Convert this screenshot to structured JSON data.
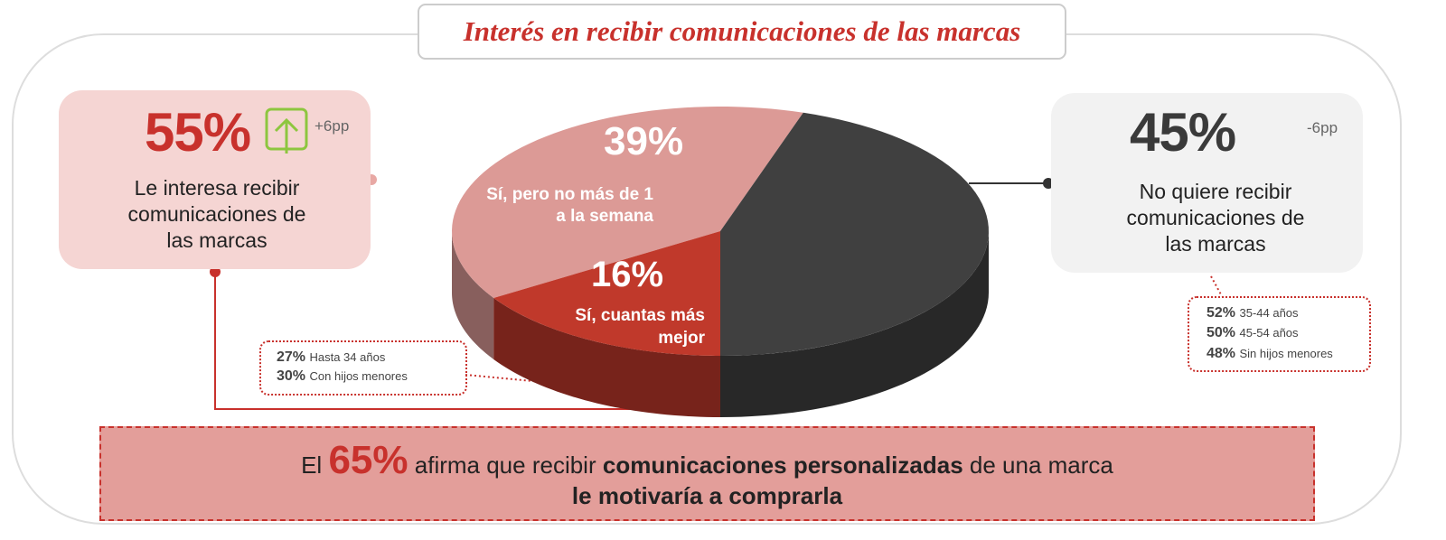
{
  "chart_data": {
    "type": "pie",
    "title": "Interés en recibir comunicaciones de las marcas",
    "categories": [
      "Sí, pero no más de 1 a la semana",
      "Sí, cuantas más mejor",
      "No quiere recibir comunicaciones de las marcas"
    ],
    "values": [
      39,
      16,
      45
    ],
    "value_labels": [
      "39%",
      "16%",
      "45%"
    ],
    "colors": [
      "#dc9a96",
      "#c0392b",
      "#404040"
    ]
  },
  "left_box": {
    "value_label": "55%",
    "change": "+6pp",
    "text": "Le interesa recibir comunicaciones de las marcas"
  },
  "right_box": {
    "change": "-6pp"
  },
  "left_note": {
    "rows": [
      {
        "value": "27%",
        "label": "Hasta 34 años"
      },
      {
        "value": "30%",
        "label": "Con hijos menores"
      }
    ]
  },
  "right_note": {
    "rows": [
      {
        "value": "52%",
        "label": "35-44 años"
      },
      {
        "value": "50%",
        "label": "45-54 años"
      },
      {
        "value": "48%",
        "label": "Sin hijos menores"
      }
    ]
  },
  "footer": {
    "prefix": "El",
    "highlight": "65%",
    "middle": "afirma que recibir",
    "bold": "comunicaciones personalizadas",
    "suffix": "de una marca",
    "line2": "le motivaría a comprarla"
  }
}
